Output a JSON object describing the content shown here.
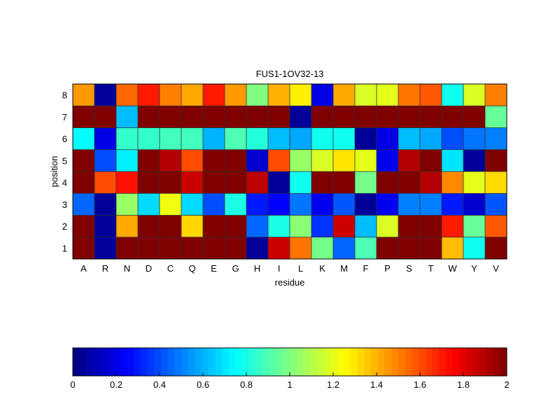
{
  "chart_data": {
    "type": "heatmap",
    "title": "FUS1-1OV32-13",
    "xlabel": "residue",
    "ylabel": "position",
    "x_categories": [
      "A",
      "R",
      "N",
      "D",
      "C",
      "Q",
      "E",
      "G",
      "H",
      "I",
      "L",
      "K",
      "M",
      "F",
      "P",
      "S",
      "T",
      "W",
      "Y",
      "V"
    ],
    "y_categories": [
      "1",
      "2",
      "3",
      "4",
      "5",
      "6",
      "7",
      "8"
    ],
    "values": [
      [
        2,
        0.05,
        2,
        2,
        2,
        2,
        2,
        2,
        0.05,
        1.85,
        1.52,
        0.98,
        0.45,
        0.9,
        2,
        2,
        2,
        1.38,
        0.78,
        2
      ],
      [
        2,
        0.05,
        1.42,
        2,
        2,
        1.33,
        2,
        2,
        0.45,
        0.8,
        1.02,
        0.35,
        1.85,
        0.62,
        1.18,
        2,
        2,
        1.7,
        0.95,
        1.58
      ],
      [
        0.45,
        0.05,
        1.05,
        0.68,
        1.22,
        0.68,
        0.4,
        0.8,
        0.3,
        0.25,
        0.48,
        0.22,
        0.42,
        0.05,
        0.22,
        0.5,
        0.5,
        0.3,
        0.15,
        0.42
      ],
      [
        2,
        1.6,
        1.72,
        2,
        2,
        1.85,
        2,
        2,
        1.88,
        0.05,
        0.78,
        2,
        2,
        0.98,
        2,
        2,
        1.9,
        1.48,
        1.2,
        1.32
      ],
      [
        2,
        0.4,
        0.72,
        2,
        1.9,
        1.6,
        2,
        2,
        0.15,
        1.6,
        1.05,
        1.18,
        1.3,
        1.2,
        0.22,
        1.9,
        2,
        0.7,
        0.05,
        2
      ],
      [
        0.75,
        0.2,
        0.85,
        0.85,
        0.88,
        0.88,
        0.6,
        0.9,
        0.82,
        0.62,
        0.58,
        0.78,
        0.78,
        0.05,
        0.2,
        0.62,
        0.58,
        0.4,
        0.48,
        0.5
      ],
      [
        2,
        2,
        0.62,
        2,
        2,
        2,
        2,
        2,
        2,
        2,
        0.05,
        2,
        2,
        2,
        2,
        2,
        2,
        2,
        2,
        0.95
      ],
      [
        1.45,
        0.05,
        1.55,
        1.7,
        1.5,
        1.42,
        1.7,
        1.45,
        1.0,
        1.4,
        1.28,
        0.2,
        1.42,
        1.18,
        1.2,
        1.52,
        1.58,
        0.78,
        1.18,
        1.5
      ]
    ],
    "colormap": "jet",
    "clim": [
      0,
      2
    ],
    "colorbar": {
      "placement": "bottom",
      "ticks": [
        "0",
        "0.2",
        "0.4",
        "0.6",
        "0.8",
        "1",
        "1.2",
        "1.4",
        "1.6",
        "1.8",
        "2"
      ]
    }
  }
}
